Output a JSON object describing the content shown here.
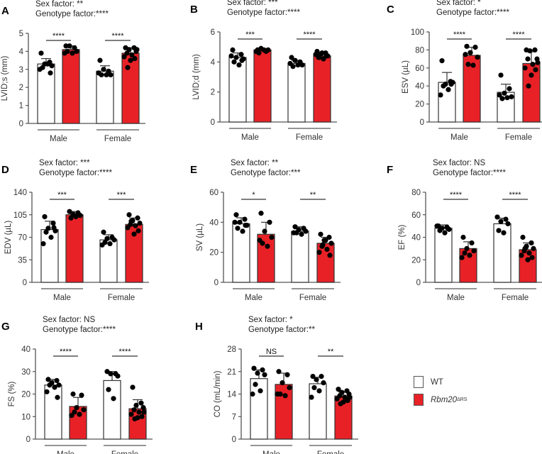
{
  "colors": {
    "wt": "#ffffff",
    "ko": "#e82127",
    "axis": "#555555"
  },
  "legend": {
    "wt_label": "WT",
    "ko_label": "Rbm20",
    "ko_superscript": "ΔRS"
  },
  "chart_data": [
    {
      "type": "bar",
      "panel": "A",
      "sex_factor": "Sex factor: **",
      "genotype_factor": "Genotype factor:****",
      "ylabel": "LVID;s (mm)",
      "ylim": [
        0,
        5
      ],
      "ticks": [
        0,
        1,
        2,
        3,
        4,
        5
      ],
      "categories": [
        "Male",
        "Female"
      ],
      "groups": [
        {
          "mean": 3.3,
          "sd": 0.3,
          "points": [
            3.9,
            3.4,
            3.3,
            3.2,
            3.1,
            3.3,
            3.0,
            2.8
          ]
        },
        {
          "mean": 4.1,
          "sd": 0.2,
          "points": [
            4.3,
            4.2,
            4.3,
            4.0,
            4.0,
            3.9,
            3.9
          ]
        },
        {
          "mean": 2.9,
          "sd": 0.3,
          "points": [
            3.5,
            2.9,
            3.0,
            2.7,
            2.7,
            2.7,
            2.8
          ]
        },
        {
          "mean": 3.9,
          "sd": 0.3,
          "points": [
            4.2,
            4.2,
            4.1,
            4.0,
            3.9,
            3.8,
            3.7,
            3.6,
            3.5,
            3.1,
            4.1
          ]
        }
      ],
      "significance": [
        "****",
        "****"
      ]
    },
    {
      "type": "bar",
      "panel": "B",
      "sex_factor": "Sex factor: ***",
      "genotype_factor": "Genotype factor:****",
      "ylabel": "LVID;d (mm)",
      "ylim": [
        0,
        6
      ],
      "ticks": [
        0,
        2,
        4,
        6
      ],
      "categories": [
        "Male",
        "Female"
      ],
      "groups": [
        {
          "mean": 4.3,
          "sd": 0.3,
          "points": [
            4.8,
            4.5,
            4.3,
            4.2,
            4.0,
            3.8,
            4.4,
            4.1
          ]
        },
        {
          "mean": 4.8,
          "sd": 0.1,
          "points": [
            4.8,
            4.7,
            4.9,
            4.8,
            4.6,
            4.8,
            4.7
          ]
        },
        {
          "mean": 3.9,
          "sd": 0.2,
          "points": [
            4.3,
            4.0,
            4.1,
            3.8,
            3.7,
            3.8,
            3.9
          ]
        },
        {
          "mean": 4.4,
          "sd": 0.2,
          "points": [
            4.7,
            4.6,
            4.5,
            4.4,
            4.3,
            4.2,
            4.5,
            4.4,
            4.6,
            4.3
          ]
        }
      ],
      "significance": [
        "***",
        "****"
      ]
    },
    {
      "type": "bar",
      "panel": "C",
      "sex_factor": "Sex factor: *",
      "genotype_factor": "Genotype factor:****",
      "ylabel": "ESV (µL)",
      "ylim": [
        0,
        100
      ],
      "ticks": [
        0,
        20,
        40,
        60,
        80,
        100
      ],
      "categories": [
        "Male",
        "Female"
      ],
      "groups": [
        {
          "mean": 44,
          "sd": 11,
          "points": [
            68,
            45,
            42,
            44,
            40,
            36,
            30,
            42
          ]
        },
        {
          "mean": 74,
          "sd": 9,
          "points": [
            84,
            83,
            77,
            72,
            64,
            63,
            75
          ]
        },
        {
          "mean": 33,
          "sd": 9,
          "points": [
            52,
            37,
            32,
            28,
            26,
            27,
            30
          ]
        },
        {
          "mean": 65,
          "sd": 13,
          "points": [
            80,
            80,
            79,
            70,
            70,
            64,
            60,
            58,
            52,
            40,
            66
          ]
        }
      ],
      "significance": [
        "****",
        "****"
      ]
    },
    {
      "type": "bar",
      "panel": "D",
      "sex_factor": "Sex factor: ***",
      "genotype_factor": "Genotype factor:****",
      "ylabel": "EDV (µL)",
      "ylim": [
        0,
        140
      ],
      "ticks": [
        0,
        35,
        70,
        105,
        140
      ],
      "categories": [
        "Male",
        "Female"
      ],
      "groups": [
        {
          "mean": 82,
          "sd": 13,
          "points": [
            102,
            92,
            84,
            80,
            78,
            70,
            60,
            85
          ]
        },
        {
          "mean": 105,
          "sd": 5,
          "points": [
            110,
            108,
            106,
            104,
            100,
            102
          ]
        },
        {
          "mean": 66,
          "sd": 8,
          "points": [
            78,
            70,
            68,
            66,
            62,
            60,
            58
          ]
        },
        {
          "mean": 90,
          "sd": 10,
          "points": [
            105,
            100,
            96,
            92,
            90,
            88,
            85,
            80,
            75,
            95
          ]
        }
      ],
      "significance": [
        "***",
        "***"
      ]
    },
    {
      "type": "bar",
      "panel": "E",
      "sex_factor": "Sex factor: **",
      "genotype_factor": "Genotype factor:***",
      "ylabel": "SV (µL)",
      "ylim": [
        0,
        60
      ],
      "ticks": [
        0,
        20,
        40,
        60
      ],
      "categories": [
        "Male",
        "Female"
      ],
      "groups": [
        {
          "mean": 39,
          "sd": 4,
          "points": [
            45,
            42,
            40,
            38,
            36,
            34,
            40,
            38
          ]
        },
        {
          "mean": 32,
          "sd": 8,
          "points": [
            46,
            40,
            34,
            30,
            26,
            24,
            28
          ]
        },
        {
          "mean": 34,
          "sd": 3,
          "points": [
            37,
            36,
            35,
            34,
            33,
            32,
            33
          ]
        },
        {
          "mean": 26,
          "sd": 4,
          "points": [
            32,
            30,
            28,
            26,
            24,
            22,
            20,
            18,
            28,
            25
          ]
        }
      ],
      "significance": [
        "*",
        "**"
      ]
    },
    {
      "type": "bar",
      "panel": "F",
      "sex_factor": "Sex factor: NS",
      "genotype_factor": "Genotype factor:****",
      "ylabel": "EF (%)",
      "ylim": [
        0,
        80
      ],
      "ticks": [
        0,
        20,
        40,
        60,
        80
      ],
      "categories": [
        "Male",
        "Female"
      ],
      "groups": [
        {
          "mean": 48,
          "sd": 3,
          "points": [
            50,
            49,
            48,
            47,
            46,
            44,
            50,
            48
          ]
        },
        {
          "mean": 30,
          "sd": 6,
          "points": [
            40,
            35,
            30,
            28,
            26,
            24,
            22
          ]
        },
        {
          "mean": 52,
          "sd": 5,
          "points": [
            58,
            56,
            54,
            52,
            46,
            44
          ]
        },
        {
          "mean": 29,
          "sd": 6,
          "points": [
            40,
            35,
            32,
            30,
            28,
            26,
            24,
            22,
            20,
            30
          ]
        }
      ],
      "significance": [
        "****",
        "****"
      ]
    },
    {
      "type": "bar",
      "panel": "G",
      "sex_factor": "Sex factor: NS",
      "genotype_factor": "Genotype factor:****",
      "ylabel": "FS (%)",
      "ylim": [
        0,
        40
      ],
      "ticks": [
        0,
        10,
        20,
        30,
        40
      ],
      "categories": [
        "Male",
        "Female"
      ],
      "groups": [
        {
          "mean": 24,
          "sd": 2.5,
          "points": [
            26.5,
            26,
            25,
            24,
            24,
            23,
            21,
            18.5
          ]
        },
        {
          "mean": 14.5,
          "sd": 4,
          "points": [
            20,
            19.5,
            14,
            13,
            12,
            11,
            10.5
          ]
        },
        {
          "mean": 26,
          "sd": 4,
          "points": [
            30,
            29,
            29,
            28,
            22,
            18
          ]
        },
        {
          "mean": 13.5,
          "sd": 4,
          "points": [
            23,
            16,
            15,
            14,
            13,
            12,
            11,
            10,
            9.5,
            9,
            12
          ]
        }
      ],
      "significance": [
        "****",
        "****"
      ]
    },
    {
      "type": "bar",
      "panel": "H",
      "sex_factor": "Sex factor: *",
      "genotype_factor": "Genotype factor:**",
      "ylabel": "CO (mL/min)",
      "ylim": [
        0,
        28
      ],
      "ticks": [
        0,
        7,
        14,
        21,
        28
      ],
      "categories": [
        "Male",
        "Female"
      ],
      "groups": [
        {
          "mean": 18.8,
          "sd": 2.7,
          "points": [
            22,
            21.5,
            20.5,
            20,
            17,
            15,
            14
          ]
        },
        {
          "mean": 17,
          "sd": 3.5,
          "points": [
            21,
            20,
            17.5,
            16,
            14,
            13.5,
            14
          ]
        },
        {
          "mean": 17.2,
          "sd": 2,
          "points": [
            19.5,
            19.5,
            18.5,
            17.5,
            16,
            15,
            13
          ]
        },
        {
          "mean": 13.4,
          "sd": 1.2,
          "points": [
            15.5,
            15,
            14.5,
            14,
            13.5,
            13,
            12.5,
            12,
            11.5,
            11,
            13
          ]
        }
      ],
      "significance": [
        "NS",
        "**"
      ]
    }
  ]
}
